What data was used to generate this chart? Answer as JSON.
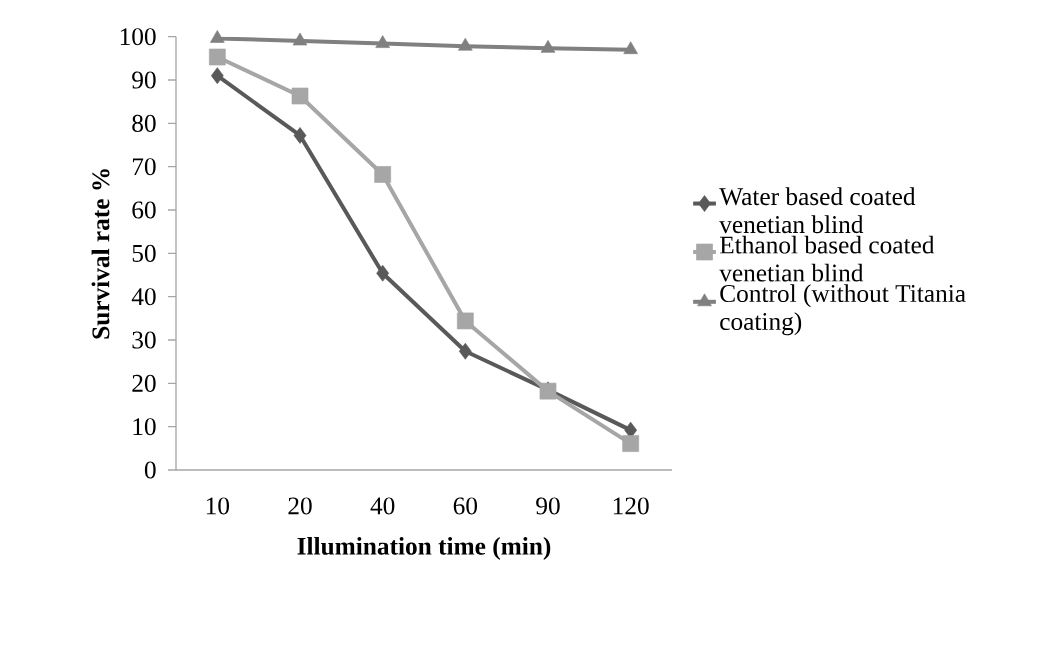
{
  "chart_data": {
    "type": "line",
    "xlabel": "Illumination time (min)",
    "ylabel": "Survival rate %",
    "categories": [
      "10",
      "20",
      "40",
      "60",
      "90",
      "120"
    ],
    "series": [
      {
        "name": "Water based coated venetian blind",
        "color": "#595959",
        "marker": "diamond",
        "values": [
          91,
          77.2,
          45.4,
          27.4,
          18.5,
          9.2
        ]
      },
      {
        "name": "Ethanol based coated venetian blind",
        "color": "#a6a6a6",
        "marker": "square",
        "values": [
          95.3,
          86.3,
          68.2,
          34.4,
          18.2,
          6.1
        ]
      },
      {
        "name": "Control (without Titania coating)",
        "color": "#808080",
        "marker": "triangle",
        "values": [
          99.6,
          99,
          98.4,
          97.8,
          97.3,
          97
        ]
      }
    ],
    "ylim": [
      0,
      100
    ],
    "yticks": [
      0,
      10,
      20,
      30,
      40,
      50,
      60,
      70,
      80,
      90,
      100
    ],
    "grid": false,
    "legend": "right",
    "line_style": "solid"
  }
}
